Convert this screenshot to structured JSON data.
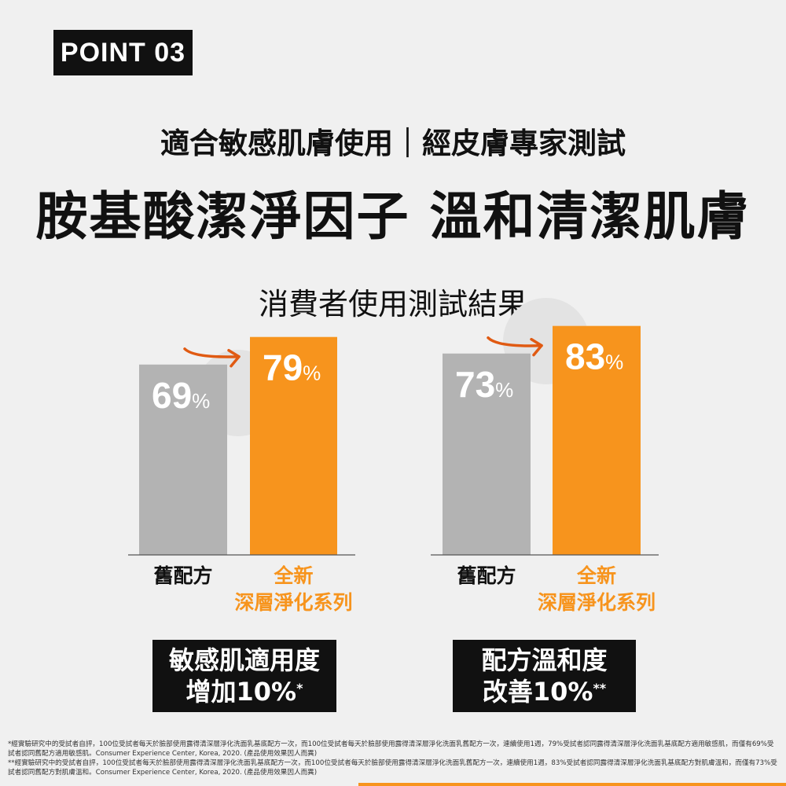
{
  "badge": "POINT 03",
  "subtitle": "適合敏感肌膚使用｜經皮膚專家測試",
  "title": "胺基酸潔淨因子 溫和清潔肌膚",
  "colors": {
    "old": "#b3b3b3",
    "new": "#f7941d",
    "arrow": "#e05a12",
    "circle": "#e3e3e3"
  },
  "chart_data": {
    "title": "消費者使用測試結果",
    "type": "bar",
    "unit": "%",
    "ylim": [
      0,
      100
    ],
    "charts": [
      {
        "categories": [
          "舊配方",
          "全新\n深層淨化系列"
        ],
        "values": [
          69,
          79
        ],
        "caption_lines": [
          "敏感肌適用度",
          "增加10%"
        ],
        "caption_mark": "*"
      },
      {
        "categories": [
          "舊配方",
          "全新\n深層淨化系列"
        ],
        "values": [
          73,
          83
        ],
        "caption_lines": [
          "配方溫和度",
          "改善10%"
        ],
        "caption_mark": "**"
      }
    ]
  },
  "footnotes": [
    "*經實驗研究中的受試者自評，100位受試者每天於臉部使用露得清深層淨化洗面乳基底配方一次，而100位受試者每天於臉部使用露得清深層淨化洗面乳舊配方一次，連續使用1週，79%受試者認同露得清深層淨化洗面乳基底配方適用敏感肌，而僅有69%受試者認同舊配方適用敏感肌。Consumer Experience Center, Korea, 2020. (產品使用效果因人而異)",
    "**經實驗研究中的受試者自評，100位受試者每天於臉部使用露得清深層淨化洗面乳基底配方一次，而100位受試者每天於臉部使用露得清深層淨化洗面乳舊配方一次，連續使用1週，83%受試者認同露得清深層淨化洗面乳基底配方對肌膚溫和，而僅有73%受試者認同舊配方對肌膚溫和。Consumer Experience Center, Korea, 2020. (產品使用效果因人而異)"
  ]
}
